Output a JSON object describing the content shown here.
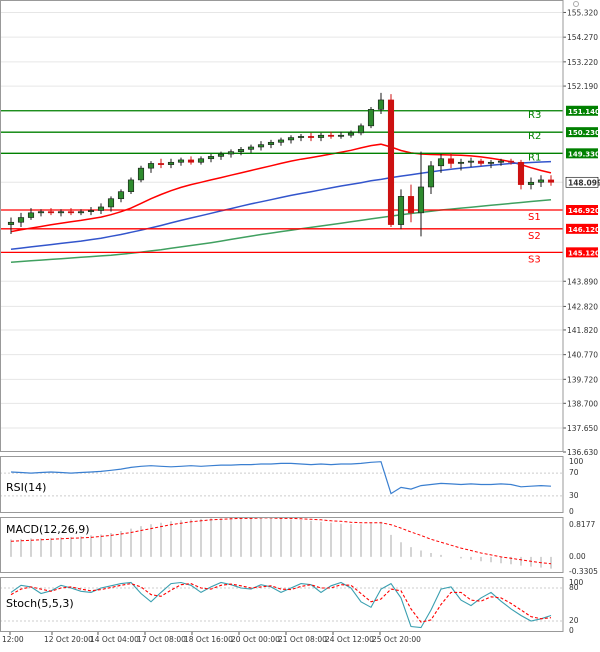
{
  "chart_data": [
    {
      "type": "candlestick",
      "panel": "price",
      "ylim": [
        136.63,
        155.85
      ],
      "y_ticks": [
        155.32,
        154.27,
        153.22,
        152.19,
        151.14,
        150.23,
        149.33,
        148.099,
        146.92,
        146.12,
        145.12,
        143.89,
        142.82,
        141.82,
        140.77,
        139.72,
        138.7,
        137.65,
        136.63
      ],
      "y_tick_labels": [
        "155.320",
        "154.270",
        "153.220",
        "152.190",
        "151.140",
        "150.230",
        "149.330",
        "148.099",
        "146.920",
        "146.120",
        "145.120",
        "143.890",
        "142.820",
        "141.820",
        "140.770",
        "139.720",
        "138.700",
        "137.650",
        "136.630"
      ],
      "x_tick_labels": [
        "12:00",
        "12 Oct 20:00",
        "14 Oct 04:00",
        "17 Oct 08:00",
        "18 Oct 16:00",
        "20 Oct 00:00",
        "21 Oct 08:00",
        "24 Oct 12:00",
        "25 Oct 20:00"
      ],
      "current_price": 148.099,
      "current_price_label": "148.099",
      "levels": [
        {
          "name": "R3",
          "value": 151.14,
          "value_label": "151.140",
          "color": "#008000"
        },
        {
          "name": "R2",
          "value": 150.23,
          "value_label": "150.230",
          "color": "#008000"
        },
        {
          "name": "R1",
          "value": 149.33,
          "value_label": "149.330",
          "color": "#008000"
        },
        {
          "name": "S1",
          "value": 146.92,
          "value_label": "146.920",
          "color": "#ff0000"
        },
        {
          "name": "S2",
          "value": 146.12,
          "value_label": "146.120",
          "color": "#ff0000"
        },
        {
          "name": "S3",
          "value": 145.12,
          "value_label": "145.120",
          "color": "#ff0000"
        }
      ],
      "candles": [
        {
          "o": 146.3,
          "h": 146.6,
          "l": 145.9,
          "c": 146.4
        },
        {
          "o": 146.4,
          "h": 146.8,
          "l": 146.2,
          "c": 146.6
        },
        {
          "o": 146.6,
          "h": 147.0,
          "l": 146.5,
          "c": 146.8
        },
        {
          "o": 146.8,
          "h": 146.95,
          "l": 146.65,
          "c": 146.85
        },
        {
          "o": 146.85,
          "h": 147.0,
          "l": 146.7,
          "c": 146.8
        },
        {
          "o": 146.8,
          "h": 146.95,
          "l": 146.65,
          "c": 146.85
        },
        {
          "o": 146.85,
          "h": 147.0,
          "l": 146.7,
          "c": 146.8
        },
        {
          "o": 146.8,
          "h": 146.95,
          "l": 146.7,
          "c": 146.85
        },
        {
          "o": 146.85,
          "h": 147.05,
          "l": 146.7,
          "c": 146.9
        },
        {
          "o": 146.9,
          "h": 147.2,
          "l": 146.75,
          "c": 147.05
        },
        {
          "o": 147.05,
          "h": 147.5,
          "l": 146.85,
          "c": 147.4
        },
        {
          "o": 147.4,
          "h": 147.8,
          "l": 147.25,
          "c": 147.7
        },
        {
          "o": 147.7,
          "h": 148.3,
          "l": 147.6,
          "c": 148.2
        },
        {
          "o": 148.2,
          "h": 148.8,
          "l": 148.1,
          "c": 148.7
        },
        {
          "o": 148.7,
          "h": 149.0,
          "l": 148.5,
          "c": 148.9
        },
        {
          "o": 148.9,
          "h": 149.1,
          "l": 148.7,
          "c": 148.85
        },
        {
          "o": 148.85,
          "h": 149.1,
          "l": 148.7,
          "c": 148.95
        },
        {
          "o": 148.95,
          "h": 149.15,
          "l": 148.8,
          "c": 149.05
        },
        {
          "o": 149.05,
          "h": 149.2,
          "l": 148.85,
          "c": 148.95
        },
        {
          "o": 148.95,
          "h": 149.2,
          "l": 148.85,
          "c": 149.1
        },
        {
          "o": 149.1,
          "h": 149.3,
          "l": 148.95,
          "c": 149.2
        },
        {
          "o": 149.2,
          "h": 149.4,
          "l": 149.05,
          "c": 149.3
        },
        {
          "o": 149.3,
          "h": 149.5,
          "l": 149.15,
          "c": 149.4
        },
        {
          "o": 149.4,
          "h": 149.6,
          "l": 149.25,
          "c": 149.5
        },
        {
          "o": 149.5,
          "h": 149.7,
          "l": 149.35,
          "c": 149.6
        },
        {
          "o": 149.6,
          "h": 149.85,
          "l": 149.45,
          "c": 149.7
        },
        {
          "o": 149.7,
          "h": 149.9,
          "l": 149.55,
          "c": 149.8
        },
        {
          "o": 149.8,
          "h": 150.0,
          "l": 149.65,
          "c": 149.9
        },
        {
          "o": 149.9,
          "h": 150.1,
          "l": 149.75,
          "c": 150.0
        },
        {
          "o": 150.0,
          "h": 150.15,
          "l": 149.85,
          "c": 150.05
        },
        {
          "o": 150.05,
          "h": 150.2,
          "l": 149.85,
          "c": 150.0
        },
        {
          "o": 150.0,
          "h": 150.2,
          "l": 149.85,
          "c": 150.1
        },
        {
          "o": 150.1,
          "h": 150.25,
          "l": 149.95,
          "c": 150.05
        },
        {
          "o": 150.05,
          "h": 150.25,
          "l": 149.95,
          "c": 150.1
        },
        {
          "o": 150.1,
          "h": 150.3,
          "l": 150.0,
          "c": 150.2
        },
        {
          "o": 150.2,
          "h": 150.6,
          "l": 150.1,
          "c": 150.5
        },
        {
          "o": 150.5,
          "h": 151.3,
          "l": 150.4,
          "c": 151.2
        },
        {
          "o": 151.2,
          "h": 151.9,
          "l": 151.0,
          "c": 151.6
        },
        {
          "o": 151.6,
          "h": 151.85,
          "l": 146.2,
          "c": 146.3
        },
        {
          "o": 146.3,
          "h": 147.8,
          "l": 146.1,
          "c": 147.5
        },
        {
          "o": 147.5,
          "h": 148.0,
          "l": 146.4,
          "c": 146.8
        },
        {
          "o": 146.8,
          "h": 149.4,
          "l": 145.8,
          "c": 147.9
        },
        {
          "o": 147.9,
          "h": 149.0,
          "l": 147.6,
          "c": 148.8
        },
        {
          "o": 148.8,
          "h": 149.3,
          "l": 148.5,
          "c": 149.1
        },
        {
          "o": 149.1,
          "h": 149.35,
          "l": 148.7,
          "c": 148.9
        },
        {
          "o": 148.9,
          "h": 149.1,
          "l": 148.6,
          "c": 148.95
        },
        {
          "o": 148.95,
          "h": 149.15,
          "l": 148.75,
          "c": 149.0
        },
        {
          "o": 149.0,
          "h": 149.1,
          "l": 148.8,
          "c": 148.9
        },
        {
          "o": 148.9,
          "h": 149.05,
          "l": 148.7,
          "c": 148.95
        },
        {
          "o": 148.95,
          "h": 149.1,
          "l": 148.8,
          "c": 149.0
        },
        {
          "o": 149.0,
          "h": 149.1,
          "l": 148.85,
          "c": 148.95
        },
        {
          "o": 148.95,
          "h": 149.05,
          "l": 147.8,
          "c": 148.0
        },
        {
          "o": 148.0,
          "h": 148.3,
          "l": 147.8,
          "c": 148.1
        },
        {
          "o": 148.1,
          "h": 148.4,
          "l": 147.9,
          "c": 148.2
        },
        {
          "o": 148.2,
          "h": 148.4,
          "l": 147.95,
          "c": 148.099
        }
      ],
      "moving_averages": [
        {
          "color": "#ff0000",
          "values": [
            146.0,
            146.08,
            146.15,
            146.22,
            146.29,
            146.36,
            146.42,
            146.48,
            146.55,
            146.62,
            146.72,
            146.85,
            147.0,
            147.2,
            147.4,
            147.58,
            147.74,
            147.88,
            148.0,
            148.1,
            148.2,
            148.3,
            148.4,
            148.5,
            148.6,
            148.7,
            148.8,
            148.9,
            149.0,
            149.08,
            149.15,
            149.22,
            149.3,
            149.38,
            149.46,
            149.56,
            149.66,
            149.72,
            149.6,
            149.45,
            149.35,
            149.3,
            149.28,
            149.27,
            149.26,
            149.25,
            149.22,
            149.18,
            149.12,
            149.05,
            148.97,
            148.85,
            148.72,
            148.6,
            148.5
          ]
        },
        {
          "color": "#3355cc",
          "values": [
            145.25,
            145.3,
            145.35,
            145.4,
            145.45,
            145.5,
            145.55,
            145.6,
            145.66,
            145.72,
            145.8,
            145.88,
            145.97,
            146.06,
            146.16,
            146.26,
            146.37,
            146.48,
            146.58,
            146.68,
            146.78,
            146.88,
            146.98,
            147.08,
            147.18,
            147.27,
            147.36,
            147.45,
            147.54,
            147.62,
            147.7,
            147.78,
            147.86,
            147.94,
            148.01,
            148.08,
            148.16,
            148.22,
            148.3,
            148.36,
            148.42,
            148.48,
            148.54,
            148.6,
            148.65,
            148.7,
            148.74,
            148.78,
            148.82,
            148.86,
            148.9,
            148.92,
            148.94,
            148.96,
            148.98
          ]
        },
        {
          "color": "#40a060",
          "values": [
            144.7,
            144.73,
            144.76,
            144.79,
            144.82,
            144.85,
            144.88,
            144.91,
            144.94,
            144.97,
            145.0,
            145.04,
            145.08,
            145.13,
            145.18,
            145.23,
            145.29,
            145.35,
            145.41,
            145.47,
            145.53,
            145.6,
            145.67,
            145.74,
            145.81,
            145.88,
            145.94,
            146.0,
            146.06,
            146.12,
            146.18,
            146.24,
            146.3,
            146.36,
            146.42,
            146.48,
            146.54,
            146.6,
            146.66,
            146.72,
            146.77,
            146.82,
            146.87,
            146.92,
            146.96,
            147.0,
            147.04,
            147.08,
            147.12,
            147.16,
            147.2,
            147.24,
            147.28,
            147.32,
            147.36
          ]
        }
      ]
    },
    {
      "type": "line",
      "panel": "rsi",
      "title": "RSI(14)",
      "ylim": [
        0,
        100
      ],
      "y_ticks": [
        0,
        30,
        70,
        100
      ],
      "y_tick_labels": [
        "0",
        "30",
        "70",
        "100"
      ],
      "series": [
        {
          "color": "#3a7fd0",
          "values": [
            72,
            71,
            70,
            71,
            72,
            71,
            70,
            71,
            72,
            73,
            75,
            77,
            80,
            82,
            83,
            82,
            81,
            82,
            83,
            82,
            83,
            84,
            84,
            85,
            85,
            86,
            86,
            87,
            87,
            86,
            85,
            86,
            85,
            86,
            86,
            87,
            89,
            90,
            34,
            45,
            42,
            48,
            50,
            52,
            51,
            50,
            51,
            50,
            50,
            51,
            50,
            46,
            47,
            48,
            47
          ]
        }
      ]
    },
    {
      "type": "bar",
      "panel": "macd",
      "title": "MACD(12,26,9)",
      "ylim": [
        -0.3305,
        0.8177
      ],
      "y_ticks": [
        0.8177,
        0.0,
        -0.3305
      ],
      "y_tick_labels": [
        "0.8177",
        "0.00",
        "-0.3305"
      ],
      "histogram": [
        0.36,
        0.37,
        0.38,
        0.38,
        0.39,
        0.4,
        0.41,
        0.42,
        0.44,
        0.46,
        0.49,
        0.53,
        0.58,
        0.63,
        0.67,
        0.7,
        0.73,
        0.75,
        0.77,
        0.78,
        0.79,
        0.79,
        0.8,
        0.8,
        0.8,
        0.8,
        0.79,
        0.78,
        0.77,
        0.76,
        0.74,
        0.72,
        0.7,
        0.68,
        0.67,
        0.67,
        0.7,
        0.72,
        0.45,
        0.3,
        0.2,
        0.13,
        0.08,
        0.04,
        0.0,
        -0.03,
        -0.06,
        -0.09,
        -0.11,
        -0.13,
        -0.15,
        -0.18,
        -0.2,
        -0.22,
        -0.24
      ],
      "signal": [
        0.32,
        0.33,
        0.34,
        0.35,
        0.36,
        0.37,
        0.38,
        0.39,
        0.4,
        0.42,
        0.44,
        0.47,
        0.5,
        0.54,
        0.58,
        0.62,
        0.66,
        0.69,
        0.72,
        0.74,
        0.76,
        0.77,
        0.78,
        0.79,
        0.79,
        0.8,
        0.8,
        0.79,
        0.79,
        0.78,
        0.77,
        0.76,
        0.74,
        0.73,
        0.71,
        0.7,
        0.7,
        0.7,
        0.66,
        0.59,
        0.51,
        0.44,
        0.36,
        0.3,
        0.24,
        0.18,
        0.13,
        0.08,
        0.04,
        0.0,
        -0.03,
        -0.06,
        -0.09,
        -0.12,
        -0.14
      ],
      "signal_color": "#ff0000"
    },
    {
      "type": "line",
      "panel": "stoch",
      "title": "Stoch(5,5,3)",
      "ylim": [
        0,
        100
      ],
      "y_ticks": [
        100,
        80,
        20,
        0
      ],
      "y_tick_labels": [
        "100",
        "80",
        "20",
        "0"
      ],
      "series": [
        {
          "color": "#3a9fb0",
          "values": [
            72,
            85,
            82,
            70,
            75,
            85,
            80,
            74,
            72,
            80,
            84,
            88,
            90,
            70,
            55,
            72,
            88,
            90,
            85,
            72,
            82,
            90,
            86,
            80,
            78,
            86,
            82,
            72,
            80,
            88,
            86,
            72,
            84,
            90,
            80,
            55,
            45,
            78,
            88,
            62,
            10,
            8,
            40,
            78,
            82,
            58,
            48,
            62,
            72,
            56,
            42,
            30,
            20,
            24,
            30
          ]
        },
        {
          "color": "#ff0000",
          "values": [
            68,
            78,
            82,
            78,
            74,
            80,
            82,
            78,
            75,
            77,
            81,
            85,
            88,
            82,
            68,
            65,
            76,
            86,
            88,
            80,
            78,
            85,
            87,
            84,
            80,
            82,
            84,
            78,
            77,
            83,
            86,
            80,
            80,
            86,
            85,
            70,
            55,
            60,
            78,
            75,
            42,
            18,
            22,
            50,
            72,
            72,
            58,
            56,
            64,
            62,
            52,
            40,
            28,
            24,
            26
          ]
        }
      ]
    }
  ]
}
